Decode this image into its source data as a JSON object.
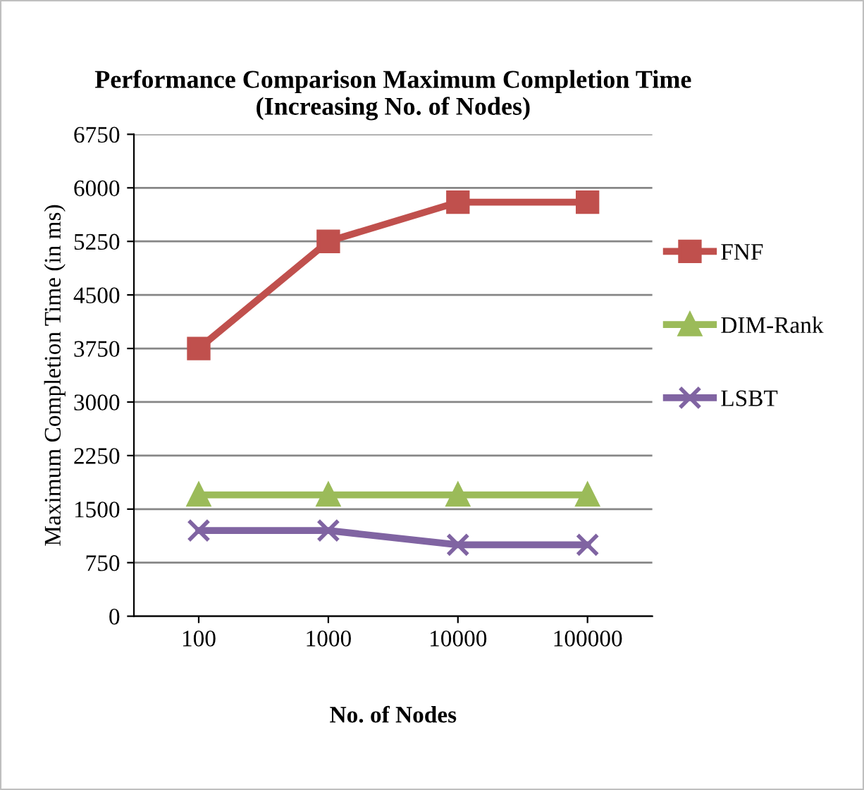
{
  "chart_data": {
    "type": "line",
    "title": "Performance Comparison Maximum Completion Time\n(Increasing No. of Nodes)",
    "xlabel": "No. of Nodes",
    "ylabel": "Maximum Completion Time (in ms)",
    "categories": [
      "100",
      "1000",
      "10000",
      "100000"
    ],
    "series": [
      {
        "name": "FNF",
        "color": "#c0504d",
        "marker": "square",
        "values": [
          3750,
          5250,
          5800,
          5800
        ]
      },
      {
        "name": "DIM-Rank",
        "color": "#9bbb59",
        "marker": "triangle",
        "values": [
          1700,
          1700,
          1700,
          1700
        ]
      },
      {
        "name": "LSBT",
        "color": "#8064a2",
        "marker": "cross",
        "values": [
          1200,
          1200,
          1000,
          1000
        ]
      }
    ],
    "ylim": [
      0,
      6750
    ],
    "yticks": [
      0,
      750,
      1500,
      2250,
      3000,
      3750,
      4500,
      5250,
      6000,
      6750
    ],
    "grid": "y",
    "legend": "right",
    "line_style": "solid"
  }
}
